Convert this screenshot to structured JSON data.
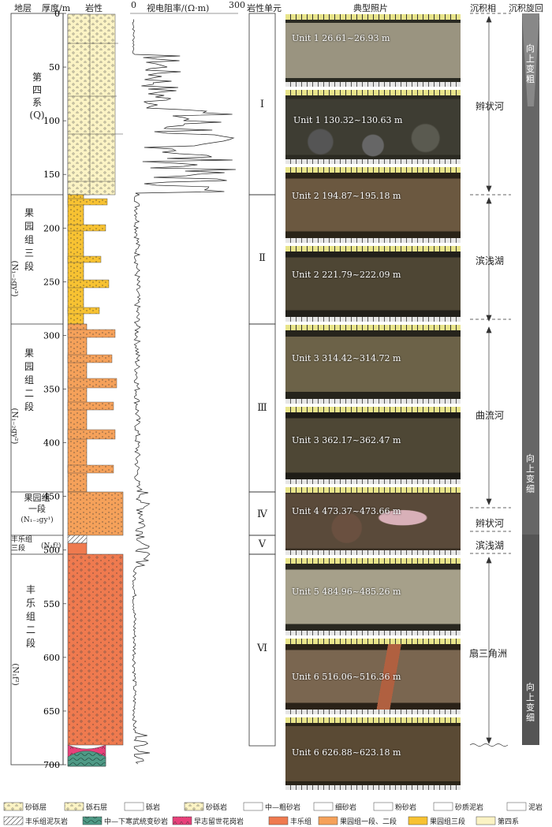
{
  "headers": {
    "formation": "地层",
    "depth": "厚度/m",
    "lithology": "岩性",
    "resistivity": "视电阻率/(Ω·m)",
    "res_min": "0",
    "res_max": "300",
    "unit": "岩性单元",
    "photo": "典型照片",
    "facies": "沉积相",
    "cycle": "沉积旋回"
  },
  "depth_ticks": [
    "0",
    "50",
    "100",
    "150",
    "200",
    "250",
    "300",
    "350",
    "400",
    "450",
    "500",
    "550",
    "600",
    "650",
    "700"
  ],
  "formations": [
    {
      "line1": "第",
      "line2": "四",
      "line3": "系",
      "line4": "(Q)"
    },
    {
      "line1": "果",
      "line2": "园",
      "line3": "组",
      "line4": "三",
      "line5": "段",
      "code": "(N₁₋₂gy³)"
    },
    {
      "line1": "果",
      "line2": "园",
      "line3": "组",
      "line4": "二",
      "line5": "段",
      "code": "(N₁₋₂gy²)"
    },
    {
      "line1": "果园组",
      "line2": "一段",
      "code": "(N₁₋₂gy¹)"
    },
    {
      "line1": "丰乐组",
      "line2": "三段",
      "code": "(N₁f³)"
    },
    {
      "line1": "丰",
      "line2": "乐",
      "line3": "组",
      "line4": "二",
      "line5": "段",
      "code": "(N₁f²)"
    }
  ],
  "units": [
    "Ⅰ",
    "Ⅱ",
    "Ⅲ",
    "Ⅳ",
    "Ⅴ",
    "Ⅵ"
  ],
  "photos": [
    "Unit 1  26.61~26.93 m",
    "Unit 1  130.32~130.63 m",
    "Unit 2  194.87~195.18 m",
    "Unit 2  221.79~222.09 m",
    "Unit 3  314.42~314.72 m",
    "Unit 3  362.17~362.47 m",
    "Unit 4  473.37~473.66 m",
    "Unit 5  484.96~485.26 m",
    "Unit 6  516.06~516.36 m",
    "Unit 6  626.88~623.18 m"
  ],
  "facies": [
    "辫状河",
    "滨浅湖",
    "曲流河",
    "辫状河",
    "滨浅湖",
    "扇三角洲"
  ],
  "cycles": [
    "向上变粗",
    "向上变细",
    "向上变细"
  ],
  "legend": [
    "砂砾层",
    "砾石层",
    "砾岩",
    "砂砾岩",
    "中—粗砂岩",
    "细砂岩",
    "粉砂岩",
    "砂质泥岩",
    "泥岩",
    "丰乐组泥灰岩",
    "中—下寒武统变砂岩",
    "早志留世花岗岩",
    "丰乐组",
    "果园组一段、二段",
    "果园组三段",
    "第四系"
  ],
  "colors": {
    "quaternary": "#fbf3c4",
    "guoyuan3": "#f7c232",
    "guoyuan12": "#f5a15a",
    "fengle": "#ef7a4f",
    "granite": "#e8407a",
    "cambrian": "#4f9a86"
  }
}
